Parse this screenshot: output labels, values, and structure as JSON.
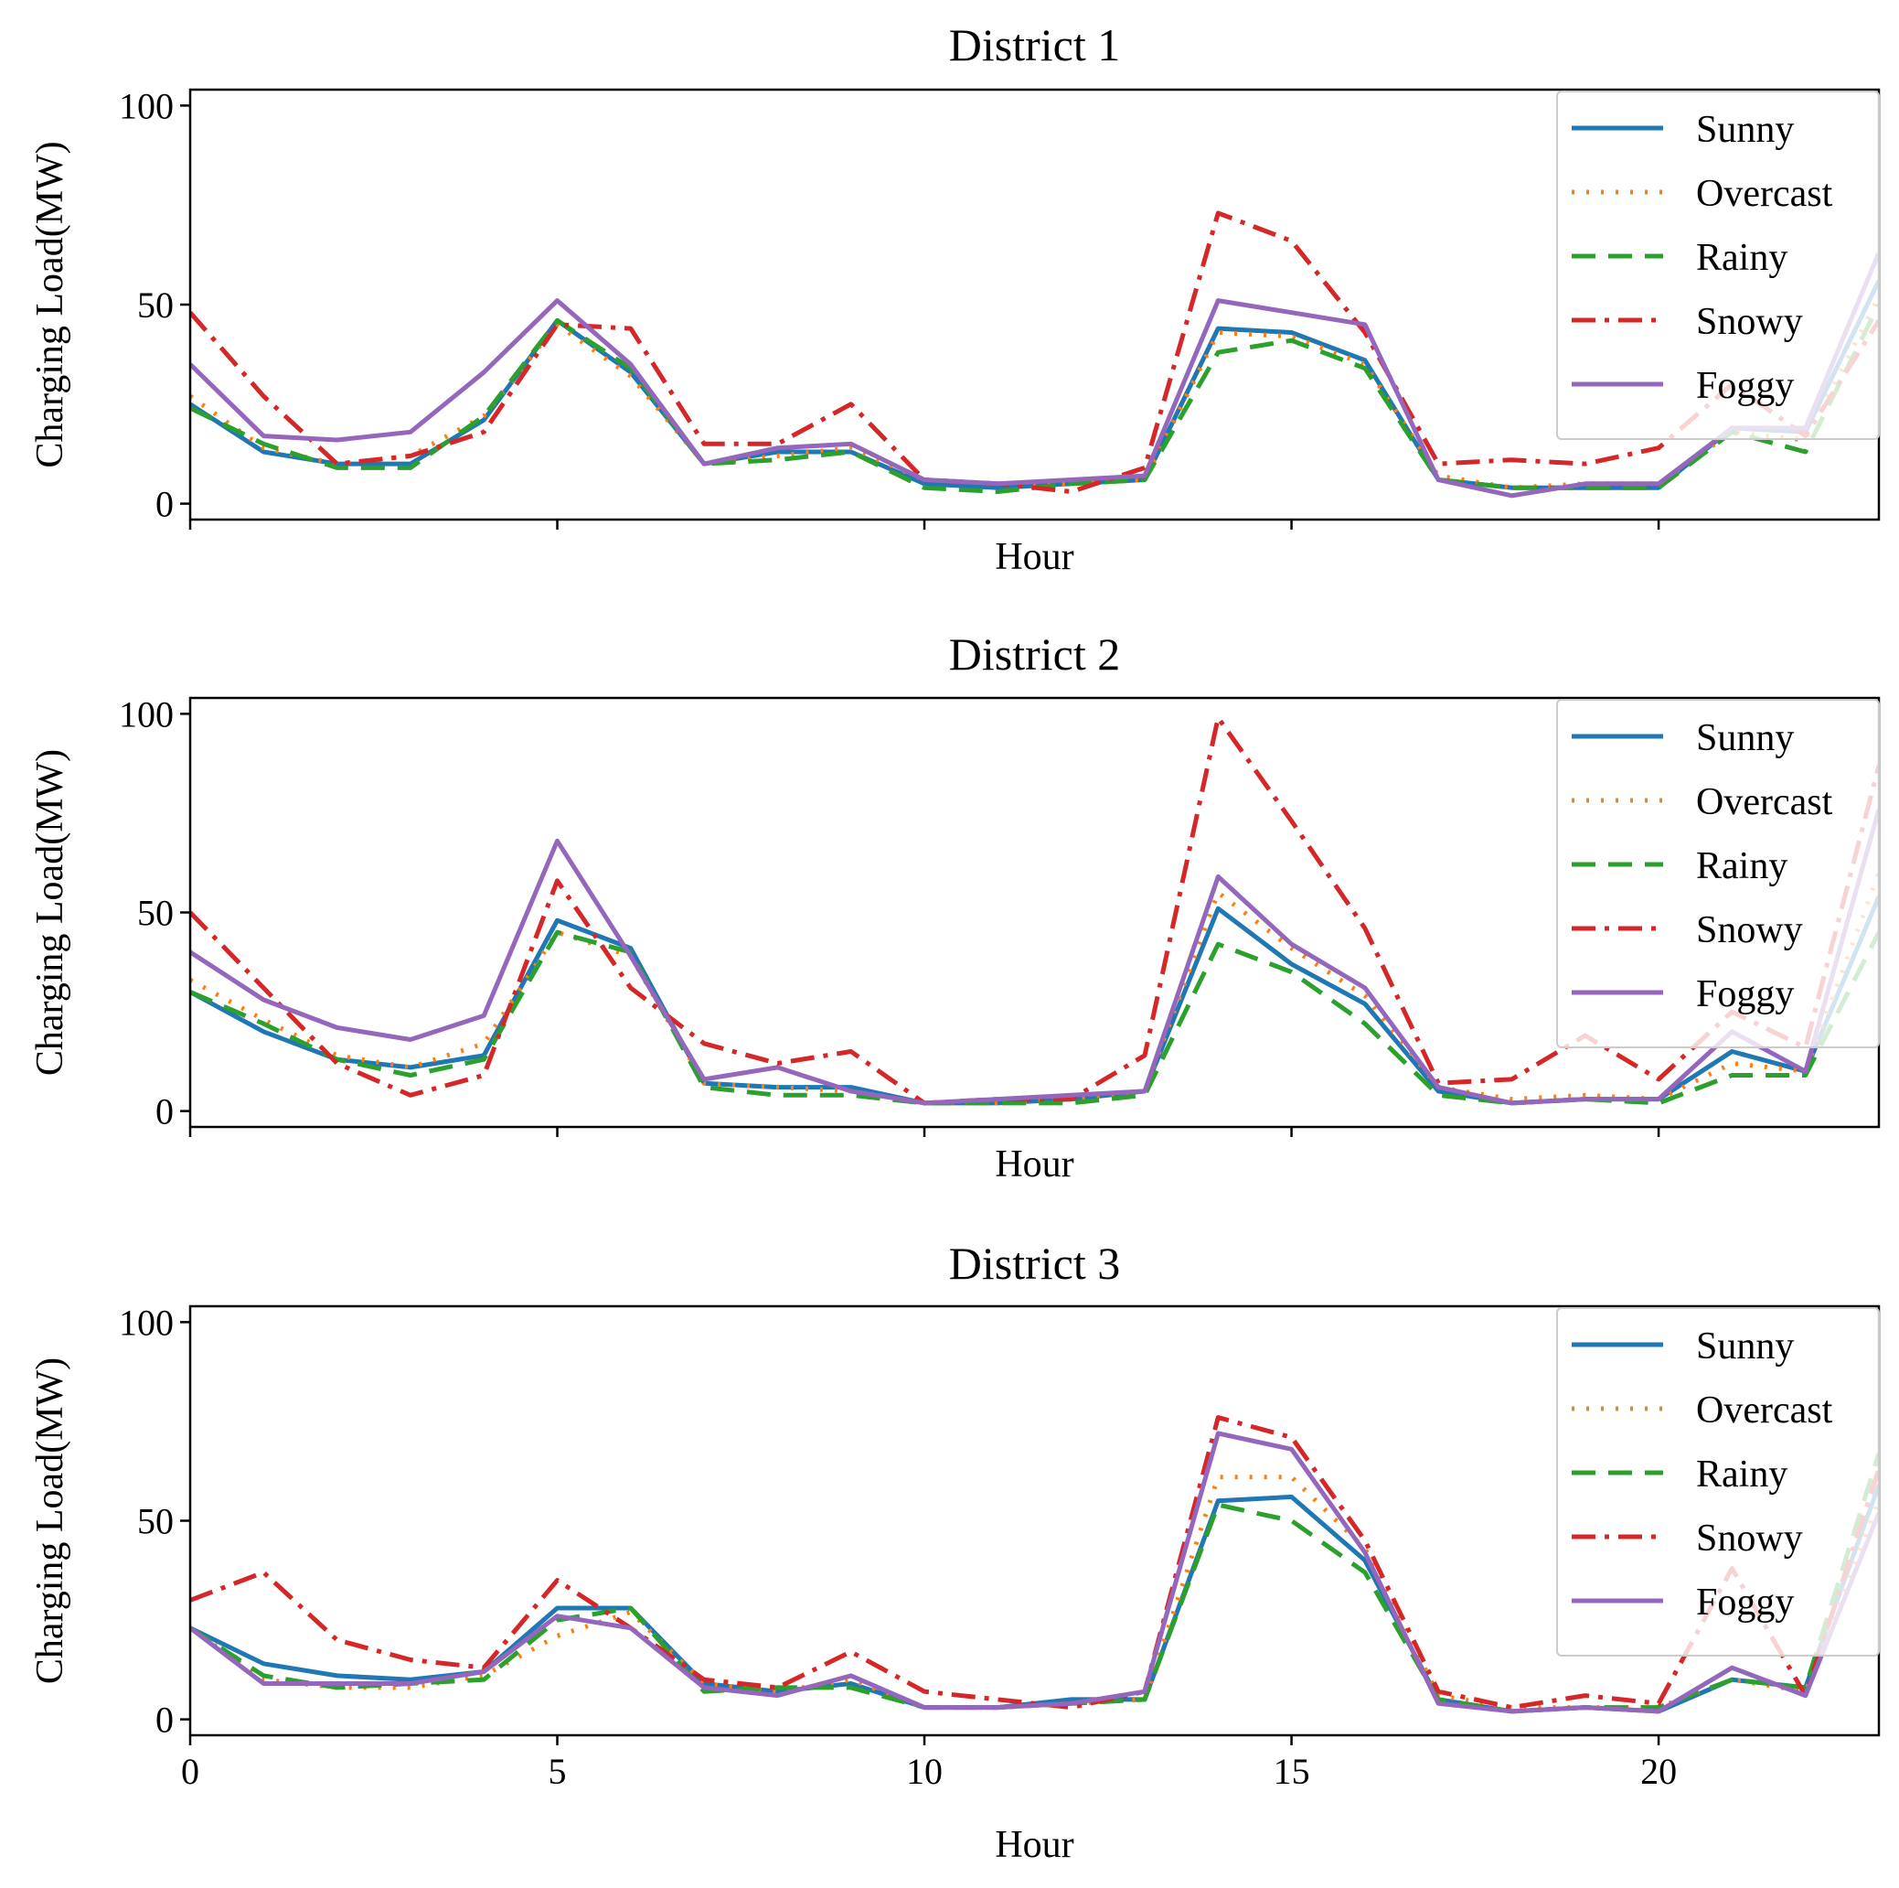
{
  "figure": {
    "x_ticks": [
      0,
      5,
      10,
      15,
      20
    ],
    "x_domain": [
      0,
      23
    ],
    "y_ticks": [
      0,
      50,
      100
    ]
  },
  "chart_data": [
    {
      "type": "line",
      "title": "District 1",
      "xlabel": "Hour",
      "ylabel": "Charging Load(MW)",
      "xlim": [
        0,
        23
      ],
      "ylim": [
        -4,
        104
      ],
      "show_x_tick_labels": false,
      "legend": "top-right",
      "x": [
        0,
        1,
        2,
        3,
        4,
        5,
        6,
        7,
        8,
        9,
        10,
        11,
        12,
        13,
        14,
        15,
        16,
        17,
        18,
        19,
        20,
        21,
        22,
        23
      ],
      "series": [
        {
          "name": "Sunny",
          "color": "#1f77b4",
          "dash": "solid",
          "values": [
            25,
            13,
            10,
            10,
            21,
            46,
            33,
            10,
            13,
            13,
            5,
            4,
            5,
            6,
            44,
            43,
            36,
            6,
            4,
            4,
            4,
            19,
            18,
            56
          ]
        },
        {
          "name": "Overcast",
          "color": "#ff7f0e",
          "dash": "dotted",
          "values": [
            27,
            14,
            10,
            12,
            22,
            45,
            32,
            10,
            12,
            14,
            6,
            5,
            5,
            6,
            43,
            42,
            35,
            7,
            4,
            5,
            5,
            18,
            16,
            52
          ]
        },
        {
          "name": "Rainy",
          "color": "#2ca02c",
          "dash": "dashed",
          "values": [
            24,
            15,
            9,
            9,
            22,
            46,
            34,
            10,
            11,
            13,
            4,
            3,
            5,
            6,
            38,
            41,
            34,
            6,
            4,
            4,
            4,
            18,
            13,
            50
          ]
        },
        {
          "name": "Snowy",
          "color": "#d62728",
          "dash": "dashdot",
          "values": [
            48,
            27,
            10,
            12,
            18,
            45,
            44,
            15,
            15,
            25,
            6,
            5,
            3,
            9,
            73,
            66,
            43,
            10,
            11,
            10,
            14,
            30,
            17,
            46
          ]
        },
        {
          "name": "Foggy",
          "color": "#9467bd",
          "dash": "solid",
          "values": [
            35,
            17,
            16,
            18,
            33,
            51,
            35,
            10,
            14,
            15,
            6,
            5,
            6,
            7,
            51,
            48,
            45,
            6,
            2,
            5,
            5,
            19,
            19,
            63
          ]
        }
      ]
    },
    {
      "type": "line",
      "title": "District 2",
      "xlabel": "Hour",
      "ylabel": "Charging Load(MW)",
      "xlim": [
        0,
        23
      ],
      "ylim": [
        -4,
        104
      ],
      "show_x_tick_labels": false,
      "legend": "top-right",
      "x": [
        0,
        1,
        2,
        3,
        4,
        5,
        6,
        7,
        8,
        9,
        10,
        11,
        12,
        13,
        14,
        15,
        16,
        17,
        18,
        19,
        20,
        21,
        22,
        23
      ],
      "series": [
        {
          "name": "Sunny",
          "color": "#1f77b4",
          "dash": "solid",
          "values": [
            30,
            20,
            13,
            11,
            14,
            48,
            41,
            7,
            6,
            6,
            2,
            2,
            3,
            5,
            51,
            37,
            27,
            5,
            2,
            3,
            3,
            15,
            10,
            54
          ]
        },
        {
          "name": "Overcast",
          "color": "#ff7f0e",
          "dash": "dotted",
          "values": [
            33,
            23,
            14,
            11,
            17,
            45,
            39,
            7,
            6,
            5,
            2,
            2,
            3,
            5,
            55,
            41,
            29,
            6,
            3,
            4,
            3,
            12,
            10,
            60
          ]
        },
        {
          "name": "Rainy",
          "color": "#2ca02c",
          "dash": "dashed",
          "values": [
            30,
            22,
            13,
            9,
            13,
            45,
            40,
            6,
            4,
            4,
            2,
            2,
            2,
            4,
            42,
            35,
            22,
            4,
            2,
            3,
            2,
            9,
            9,
            45
          ]
        },
        {
          "name": "Snowy",
          "color": "#d62728",
          "dash": "dashdot",
          "values": [
            50,
            31,
            12,
            4,
            9,
            58,
            31,
            17,
            12,
            15,
            2,
            3,
            3,
            14,
            99,
            73,
            46,
            7,
            8,
            19,
            8,
            25,
            16,
            87
          ]
        },
        {
          "name": "Foggy",
          "color": "#9467bd",
          "dash": "solid",
          "values": [
            40,
            28,
            21,
            18,
            24,
            68,
            39,
            8,
            11,
            5,
            2,
            3,
            4,
            5,
            59,
            42,
            31,
            6,
            2,
            3,
            3,
            20,
            10,
            76
          ]
        }
      ]
    },
    {
      "type": "line",
      "title": "District 3",
      "xlabel": "Hour",
      "ylabel": "Charging Load(MW)",
      "xlim": [
        0,
        23
      ],
      "ylim": [
        -4,
        104
      ],
      "show_x_tick_labels": true,
      "legend": "top-right",
      "x": [
        0,
        1,
        2,
        3,
        4,
        5,
        6,
        7,
        8,
        9,
        10,
        11,
        12,
        13,
        14,
        15,
        16,
        17,
        18,
        19,
        20,
        21,
        22,
        23
      ],
      "series": [
        {
          "name": "Sunny",
          "color": "#1f77b4",
          "dash": "solid",
          "values": [
            23,
            14,
            11,
            10,
            12,
            28,
            28,
            9,
            7,
            9,
            3,
            3,
            5,
            5,
            55,
            56,
            40,
            5,
            2,
            3,
            2,
            10,
            8,
            59
          ]
        },
        {
          "name": "Overcast",
          "color": "#ff7f0e",
          "dash": "dotted",
          "values": [
            23,
            10,
            8,
            8,
            11,
            21,
            27,
            9,
            7,
            10,
            3,
            3,
            4,
            5,
            61,
            61,
            43,
            6,
            3,
            3,
            3,
            10,
            7,
            55
          ]
        },
        {
          "name": "Rainy",
          "color": "#2ca02c",
          "dash": "dashed",
          "values": [
            23,
            11,
            8,
            9,
            10,
            25,
            28,
            7,
            8,
            8,
            3,
            3,
            4,
            5,
            54,
            50,
            37,
            5,
            2,
            3,
            3,
            10,
            8,
            67
          ]
        },
        {
          "name": "Snowy",
          "color": "#d62728",
          "dash": "dashdot",
          "values": [
            30,
            37,
            20,
            15,
            13,
            35,
            23,
            10,
            8,
            17,
            7,
            5,
            3,
            7,
            76,
            71,
            45,
            7,
            3,
            6,
            4,
            38,
            6,
            63
          ]
        },
        {
          "name": "Foggy",
          "color": "#9467bd",
          "dash": "solid",
          "values": [
            23,
            9,
            9,
            9,
            12,
            26,
            23,
            8,
            6,
            11,
            3,
            3,
            4,
            7,
            72,
            68,
            42,
            4,
            2,
            3,
            2,
            13,
            6,
            52
          ]
        }
      ]
    }
  ]
}
